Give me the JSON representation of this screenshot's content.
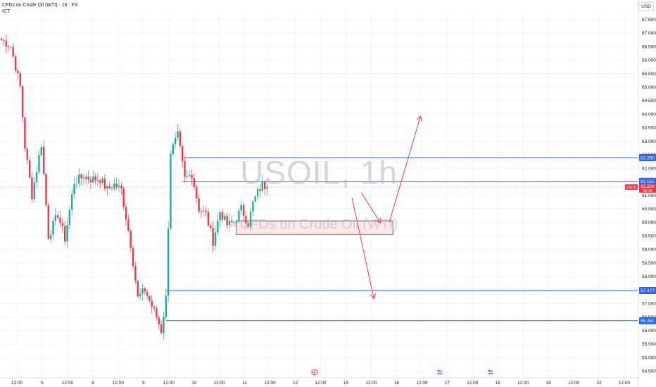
{
  "header": {
    "title": "CFDs on Crude Oil (WTI) · 1h · FX",
    "indicator": "ICT"
  },
  "currency_button": "USD",
  "watermark": {
    "symbol": "USOIL, 1h",
    "description": "CFDs on Crude Oil (WTI)"
  },
  "colors": {
    "up": "#22ab94",
    "down": "#f23645",
    "level_line": "#2962ff",
    "arrow": "#f23645",
    "zone_fill": "#fde8ea",
    "zone_border": "#333333",
    "price_tag": "#f23645"
  },
  "chart_data": {
    "type": "candlestick",
    "symbol": "USOIL",
    "interval": "1h",
    "ylim": [
      54.25,
      67.75
    ],
    "y_ticks": [
      "54.500",
      "55.000",
      "55.500",
      "56.000",
      "56.500",
      "57.000",
      "57.500",
      "58.000",
      "58.500",
      "59.000",
      "59.500",
      "60.000",
      "60.500",
      "61.000",
      "61.500",
      "62.000",
      "62.500",
      "63.000",
      "63.500",
      "64.000",
      "64.500",
      "65.000",
      "65.500",
      "66.000",
      "66.500",
      "67.000",
      "67.500"
    ],
    "x_ticks": [
      "12:00",
      "5",
      "12:00",
      "8",
      "12:00",
      "9",
      "12:00",
      "10",
      "12:00",
      "11",
      "12:00",
      "12",
      "12:00",
      "15",
      "12:00",
      "16",
      "12:00",
      "17",
      "12:00",
      "18",
      "12:00",
      "19",
      "12:00",
      "22",
      "12:00"
    ],
    "current_price": {
      "symbol": "USOIL",
      "value": "61.304",
      "countdown": "48:25"
    },
    "levels": [
      {
        "value": 62.39,
        "label": "62.390"
      },
      {
        "value": 61.515,
        "label": "61.515"
      },
      {
        "value": 57.477,
        "label": "57.477"
      },
      {
        "value": 56.362,
        "label": "56.362"
      }
    ],
    "zone": {
      "top": 60.05,
      "bottom": 59.55
    },
    "arrows": [
      {
        "from": [
          116,
          61.1
        ],
        "to": [
          122,
          60.0
        ]
      },
      {
        "from": [
          125,
          60.0
        ],
        "to": [
          135,
          63.9
        ]
      },
      {
        "from": [
          113,
          60.9
        ],
        "to": [
          120,
          57.2
        ]
      }
    ],
    "event_markers": [
      {
        "x_index": 117,
        "type": "alert"
      },
      {
        "x_index": 157,
        "type": "flag-us"
      },
      {
        "x_index": 177,
        "type": "flag-us"
      }
    ],
    "anchors": [
      [
        0,
        66.75
      ],
      [
        4,
        66.5
      ],
      [
        8,
        65.0
      ],
      [
        10,
        62.8
      ],
      [
        13,
        61.0
      ],
      [
        17,
        62.9
      ],
      [
        20,
        59.5
      ],
      [
        24,
        60.3
      ],
      [
        27,
        59.4
      ],
      [
        31,
        61.5
      ],
      [
        35,
        61.7
      ],
      [
        38,
        61.6
      ],
      [
        42,
        61.6
      ],
      [
        45,
        61.2
      ],
      [
        48,
        61.4
      ],
      [
        51,
        61.2
      ],
      [
        55,
        59.2
      ],
      [
        58,
        57.2
      ],
      [
        61,
        57.5
      ],
      [
        64,
        56.9
      ],
      [
        66,
        56.5
      ],
      [
        68,
        56.0
      ],
      [
        70,
        57.2
      ],
      [
        72,
        62.6
      ],
      [
        75,
        63.2
      ],
      [
        78,
        61.6
      ],
      [
        81,
        61.8
      ],
      [
        84,
        60.5
      ],
      [
        87,
        60.3
      ],
      [
        90,
        59.3
      ],
      [
        93,
        60.4
      ],
      [
        96,
        59.9
      ],
      [
        99,
        60.0
      ],
      [
        102,
        60.5
      ],
      [
        105,
        59.95
      ],
      [
        107,
        60.7
      ],
      [
        109,
        61.1
      ],
      [
        111,
        61.4
      ],
      [
        113,
        61.304
      ]
    ],
    "candle_spacing_px": 3.34
  }
}
